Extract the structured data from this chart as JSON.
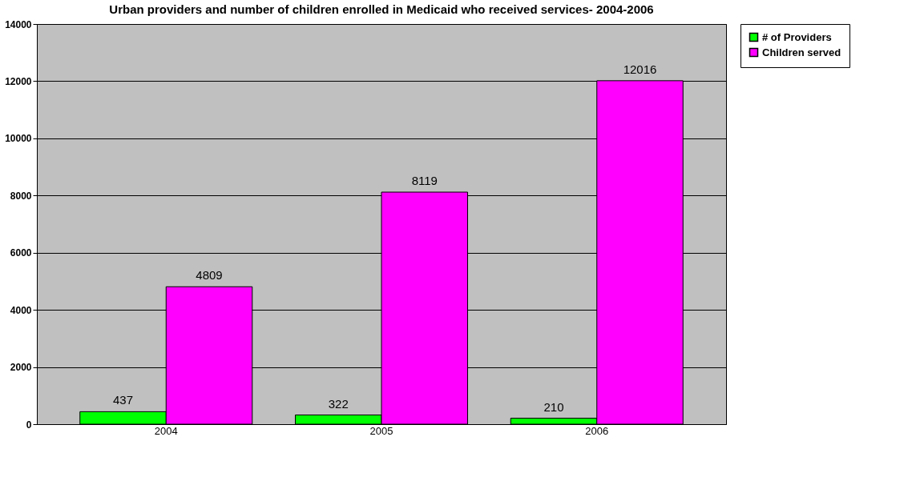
{
  "chart_data": {
    "type": "bar",
    "title": "Urban providers and number of children enrolled in Medicaid who received services- 2004-2006",
    "categories": [
      "2004",
      "2005",
      "2006"
    ],
    "series": [
      {
        "name": "# of Providers",
        "color": "#00ff00",
        "values": [
          437,
          322,
          210
        ]
      },
      {
        "name": "Children served",
        "color": "#ff00ff",
        "values": [
          4809,
          8119,
          12016
        ]
      }
    ],
    "ylim": [
      0,
      14000
    ],
    "yticks": [
      0,
      2000,
      4000,
      6000,
      8000,
      10000,
      12000,
      14000
    ],
    "grid": "y",
    "legend": "right",
    "data_labels": true
  }
}
